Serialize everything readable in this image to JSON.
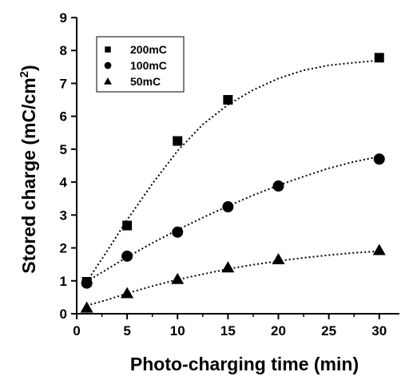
{
  "chart_data": {
    "type": "scatter",
    "title": "",
    "xlabel": "Photo-charging time (min)",
    "ylabel_main": "Stored charge (mC/cm",
    "ylabel_sup": "2",
    "ylabel_end": ")",
    "xlim": [
      0,
      32
    ],
    "ylim": [
      0,
      9
    ],
    "xticks": [
      0,
      5,
      10,
      15,
      20,
      25,
      30
    ],
    "yticks": [
      0,
      1,
      2,
      3,
      4,
      5,
      6,
      7,
      8,
      9
    ],
    "grid": false,
    "legend_position": "top-left",
    "fit_lines": "dotted",
    "series": [
      {
        "name": "200mC",
        "marker": "square",
        "x": [
          1,
          5,
          10,
          15,
          30
        ],
        "y": [
          0.97,
          2.68,
          5.25,
          6.5,
          7.78
        ],
        "fit": [
          [
            1,
            0.97
          ],
          [
            3,
            1.9
          ],
          [
            5,
            2.85
          ],
          [
            7.5,
            3.95
          ],
          [
            10,
            4.95
          ],
          [
            12.5,
            5.75
          ],
          [
            15,
            6.35
          ],
          [
            17.5,
            6.8
          ],
          [
            20,
            7.15
          ],
          [
            22.5,
            7.4
          ],
          [
            25,
            7.55
          ],
          [
            27.5,
            7.63
          ],
          [
            30,
            7.7
          ]
        ]
      },
      {
        "name": "100mC",
        "marker": "circle",
        "x": [
          1,
          5,
          10,
          15,
          20,
          30
        ],
        "y": [
          0.93,
          1.75,
          2.48,
          3.25,
          3.88,
          4.7
        ],
        "fit": [
          [
            1,
            0.98
          ],
          [
            3,
            1.35
          ],
          [
            5,
            1.72
          ],
          [
            7.5,
            2.15
          ],
          [
            10,
            2.55
          ],
          [
            12.5,
            2.92
          ],
          [
            15,
            3.27
          ],
          [
            17.5,
            3.6
          ],
          [
            20,
            3.9
          ],
          [
            22.5,
            4.17
          ],
          [
            25,
            4.42
          ],
          [
            27.5,
            4.62
          ],
          [
            30,
            4.78
          ]
        ]
      },
      {
        "name": "50mC",
        "marker": "triangle",
        "x": [
          1,
          5,
          10,
          15,
          20,
          30
        ],
        "y": [
          0.18,
          0.62,
          1.05,
          1.4,
          1.65,
          1.93
        ],
        "fit": [
          [
            1,
            0.25
          ],
          [
            3,
            0.42
          ],
          [
            5,
            0.62
          ],
          [
            7.5,
            0.84
          ],
          [
            10,
            1.04
          ],
          [
            12.5,
            1.2
          ],
          [
            15,
            1.36
          ],
          [
            17.5,
            1.49
          ],
          [
            20,
            1.6
          ],
          [
            22.5,
            1.7
          ],
          [
            25,
            1.78
          ],
          [
            27.5,
            1.85
          ],
          [
            30,
            1.9
          ]
        ]
      }
    ]
  }
}
